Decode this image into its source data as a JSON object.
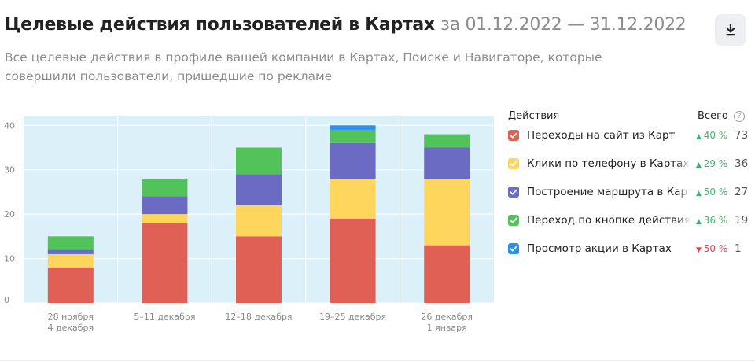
{
  "header": {
    "title": "Целевые действия пользователей в Картах",
    "period": "за 01.12.2022 — 31.12.2022",
    "subtitle": "Все целевые действия в профиле вашей компании в Картах, Поиске и Навигаторе, которые совершили пользователи, пришедшие по рекламе",
    "download_icon": "download-icon"
  },
  "legend": {
    "actions_header": "Действия",
    "total_header": "Всего",
    "help_icon": "?",
    "items": [
      {
        "label": "Переходы на сайт из Карт",
        "change": "40 %",
        "direction": "up",
        "total": "73",
        "color": "#e06055"
      },
      {
        "label": "Клики по телефону в Картах",
        "change": "29 %",
        "direction": "up",
        "total": "36",
        "color": "#ffd65c"
      },
      {
        "label": "Построение маршрута в Картах",
        "change": "50 %",
        "direction": "up",
        "total": "27",
        "color": "#6b6bc4"
      },
      {
        "label": "Переход по кнопке действия из Карт",
        "change": "36 %",
        "direction": "up",
        "total": "19",
        "color": "#52c25a"
      },
      {
        "label": "Просмотр акции в Картах",
        "change": "50 %",
        "direction": "down",
        "total": "1",
        "color": "#2b8ff0"
      }
    ]
  },
  "chart_data": {
    "type": "bar",
    "stacked": true,
    "categories": [
      [
        "28 ноября",
        "4 декабря"
      ],
      [
        "5–11 декабря"
      ],
      [
        "12–18 декабря"
      ],
      [
        "19–25 декабря"
      ],
      [
        "26 декабря",
        "1 января"
      ]
    ],
    "series": [
      {
        "name": "Переходы на сайт из Карт",
        "color": "#e06055",
        "values": [
          8,
          18,
          15,
          19,
          13
        ]
      },
      {
        "name": "Клики по телефону в Картах",
        "color": "#ffd65c",
        "values": [
          3,
          2,
          7,
          9,
          15
        ]
      },
      {
        "name": "Построение маршрута в Картах",
        "color": "#6b6bc4",
        "values": [
          1,
          4,
          7,
          8,
          7
        ]
      },
      {
        "name": "Переход по кнопке действия из Карт",
        "color": "#52c25a",
        "values": [
          3,
          4,
          6,
          3,
          3
        ]
      },
      {
        "name": "Просмотр акции в Картах",
        "color": "#2b8ff0",
        "values": [
          0,
          0,
          0,
          1,
          0
        ]
      }
    ],
    "yticks": [
      0,
      10,
      20,
      30,
      40
    ],
    "ylim": [
      0,
      42
    ],
    "grid": true,
    "background": "#dcf0fa"
  }
}
